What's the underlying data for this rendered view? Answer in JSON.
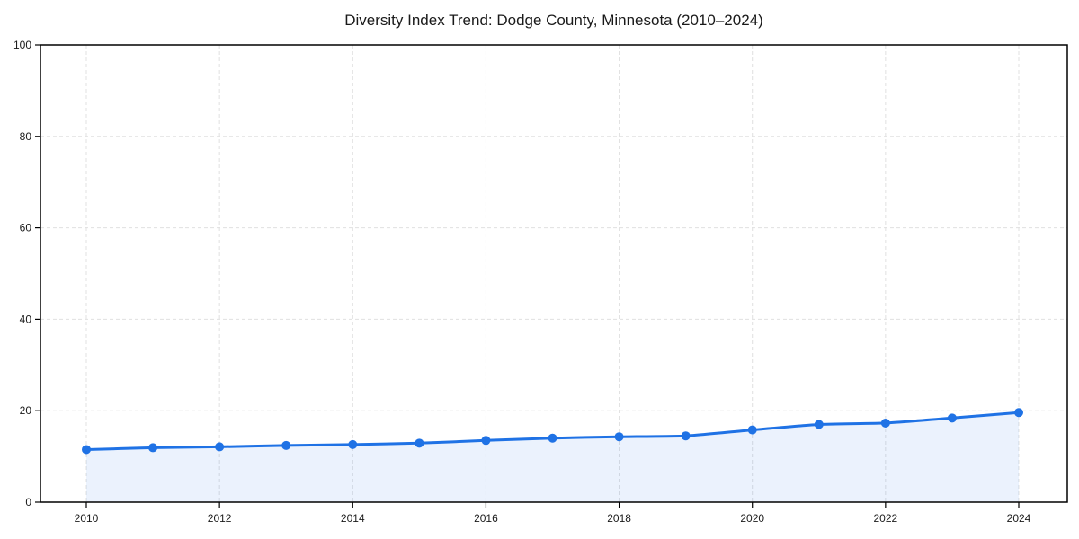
{
  "page": {
    "background": "#ffffff"
  },
  "chart_data": {
    "type": "line",
    "title": "Diversity Index Trend: Dodge County, Minnesota (2010–2024)",
    "series": [
      {
        "name": "Diversity Index",
        "x": [
          2010,
          2011,
          2012,
          2013,
          2014,
          2015,
          2016,
          2017,
          2018,
          2019,
          2020,
          2021,
          2022,
          2023,
          2024
        ],
        "values": [
          11.5,
          11.9,
          12.1,
          12.4,
          12.6,
          12.9,
          13.5,
          14.0,
          14.3,
          14.5,
          15.8,
          17.0,
          17.3,
          18.4,
          19.6
        ]
      }
    ],
    "xlabel": "",
    "ylabel": "",
    "xticks": [
      2010,
      2012,
      2014,
      2016,
      2018,
      2020,
      2022,
      2024
    ],
    "yticks": [
      0,
      20,
      40,
      60,
      80,
      100
    ],
    "xlim": [
      2010,
      2024
    ],
    "ylim": [
      0,
      100
    ],
    "grid": true,
    "grid_style": "dashed",
    "legend_position": "none",
    "marker": "circle",
    "area_fill": true,
    "colors": {
      "line": "#1f72e5",
      "marker": "#1f72e5",
      "fill": "rgba(31, 114, 229, 0.09)",
      "grid": "#e0e0e0",
      "axis": "#000000",
      "text": "#1a1a1a",
      "background": "#ffffff"
    }
  }
}
